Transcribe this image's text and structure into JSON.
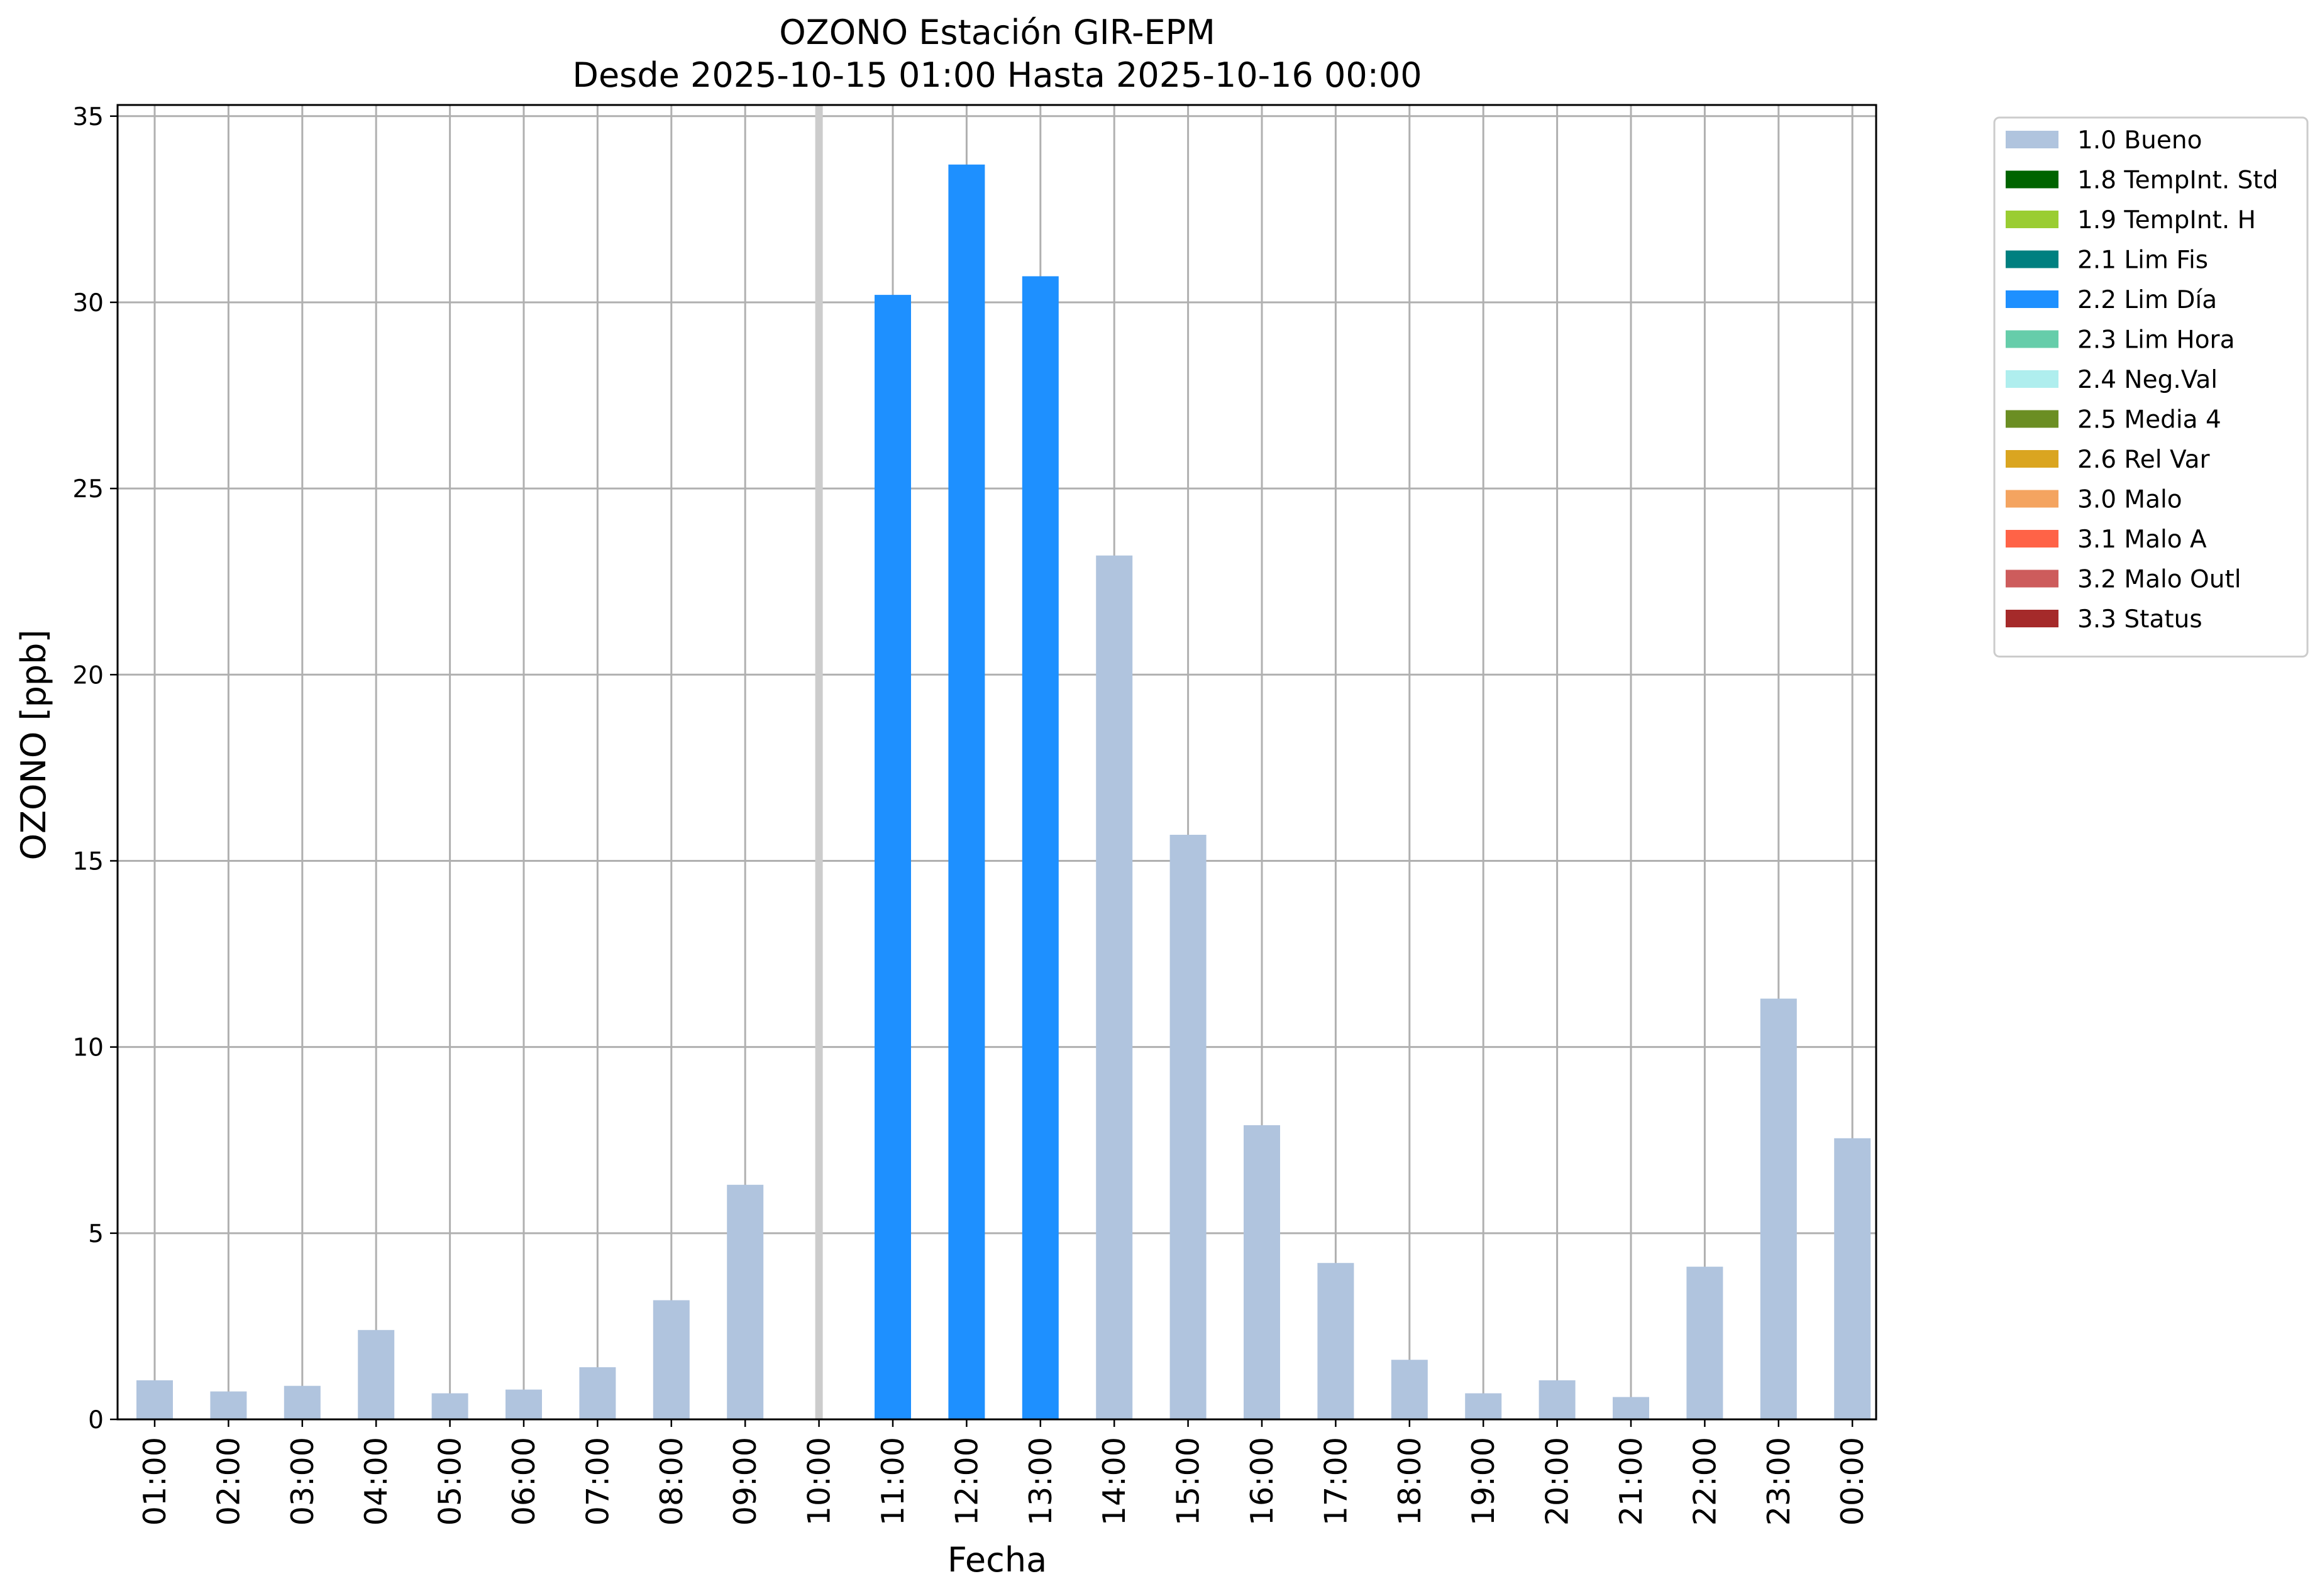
{
  "chart_data": {
    "type": "bar",
    "title": "OZONO Estación GIR-EPM",
    "subtitle": "Desde 2025-10-15 01:00 Hasta 2025-10-16 00:00",
    "xlabel": "Fecha",
    "ylabel": "OZONO [ppb]",
    "ylim": [
      0,
      35.3
    ],
    "yticks": [
      0,
      5,
      10,
      15,
      20,
      25,
      30,
      35
    ],
    "grid": true,
    "legend_position": "outside-top-right",
    "categories": [
      "01:00",
      "02:00",
      "03:00",
      "04:00",
      "05:00",
      "06:00",
      "07:00",
      "08:00",
      "09:00",
      "10:00",
      "11:00",
      "12:00",
      "13:00",
      "14:00",
      "15:00",
      "16:00",
      "17:00",
      "18:00",
      "19:00",
      "20:00",
      "21:00",
      "22:00",
      "23:00",
      "00:00"
    ],
    "values": [
      1.05,
      0.75,
      0.9,
      2.4,
      0.7,
      0.8,
      1.4,
      3.2,
      6.3,
      null,
      30.2,
      33.7,
      30.7,
      23.2,
      15.7,
      7.9,
      4.2,
      1.6,
      0.7,
      1.05,
      0.6,
      4.1,
      11.3,
      7.55
    ],
    "bar_flags": [
      "1.0 Bueno",
      "1.0 Bueno",
      "1.0 Bueno",
      "1.0 Bueno",
      "1.0 Bueno",
      "1.0 Bueno",
      "1.0 Bueno",
      "1.0 Bueno",
      "1.0 Bueno",
      null,
      "2.2 Lim Día",
      "2.2 Lim Día",
      "2.2 Lim Día",
      "1.0 Bueno",
      "1.0 Bueno",
      "1.0 Bueno",
      "1.0 Bueno",
      "1.0 Bueno",
      "1.0 Bueno",
      "1.0 Bueno",
      "1.0 Bueno",
      "1.0 Bueno",
      "1.0 Bueno",
      "1.0 Bueno"
    ],
    "legend": [
      {
        "label": "1.0 Bueno",
        "color": "#b0c4de"
      },
      {
        "label": "1.8 TempInt. Std",
        "color": "#006400"
      },
      {
        "label": "1.9 TempInt. H",
        "color": "#9acd32"
      },
      {
        "label": "2.1 Lim Fis",
        "color": "#008080"
      },
      {
        "label": "2.2 Lim Día",
        "color": "#1e90ff"
      },
      {
        "label": "2.3 Lim Hora",
        "color": "#66cdaa"
      },
      {
        "label": "2.4 Neg.Val",
        "color": "#afeeee"
      },
      {
        "label": "2.5 Media 4",
        "color": "#6b8e23"
      },
      {
        "label": "2.6 Rel Var",
        "color": "#daa520"
      },
      {
        "label": "3.0 Malo",
        "color": "#f4a460"
      },
      {
        "label": "3.1 Malo A",
        "color": "#ff6347"
      },
      {
        "label": "3.2 Malo Outl",
        "color": "#cd5c5c"
      },
      {
        "label": "3.3 Status",
        "color": "#a52a2a"
      }
    ]
  }
}
